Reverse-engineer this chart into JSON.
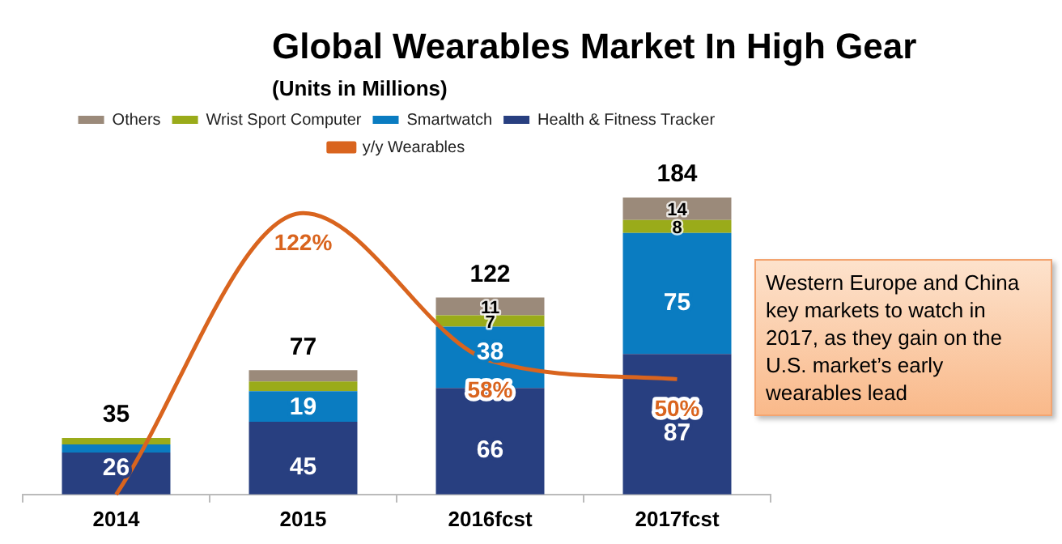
{
  "chart_data": {
    "type": "bar",
    "title": "Global Wearables Market In High Gear",
    "subtitle": "(Units in Millions)",
    "categories": [
      "2014",
      "2015",
      "2016fcst",
      "2017fcst"
    ],
    "stacked": true,
    "grid": false,
    "legend": "top",
    "tick_labels": "x",
    "marker": "none",
    "line_style": "solid",
    "series": [
      {
        "name": "Health & Fitness Tracker",
        "color": "#283f80",
        "values": [
          26,
          45,
          66,
          87
        ],
        "value_labels": [
          "26",
          "45",
          "66",
          "87"
        ]
      },
      {
        "name": "Smartwatch",
        "color": "#0a7cc1",
        "values": [
          5,
          19,
          38,
          75
        ],
        "value_labels": [
          null,
          "19",
          "38",
          "75"
        ]
      },
      {
        "name": "Wrist Sport Computer",
        "color": "#9aab1a",
        "values": [
          4,
          6,
          7,
          8
        ],
        "value_labels": [
          null,
          null,
          "7",
          "8"
        ]
      },
      {
        "name": "Others",
        "color": "#9b8a7a",
        "values": [
          0,
          7,
          11,
          14
        ],
        "value_labels": [
          null,
          null,
          "11",
          "14"
        ]
      },
      {
        "name": "y/y Wearables",
        "type": "line",
        "axis": "y2",
        "color": "#d9641e",
        "values": [
          0,
          122,
          58,
          50
        ],
        "value_labels": [
          null,
          "122%",
          "58%",
          "50%"
        ]
      }
    ],
    "totals": [
      "35",
      "77",
      "122",
      "184"
    ],
    "annotations": [
      "Western Europe and China key markets to watch in 2017, as they gain on the U.S. market’s early wearables lead"
    ]
  }
}
